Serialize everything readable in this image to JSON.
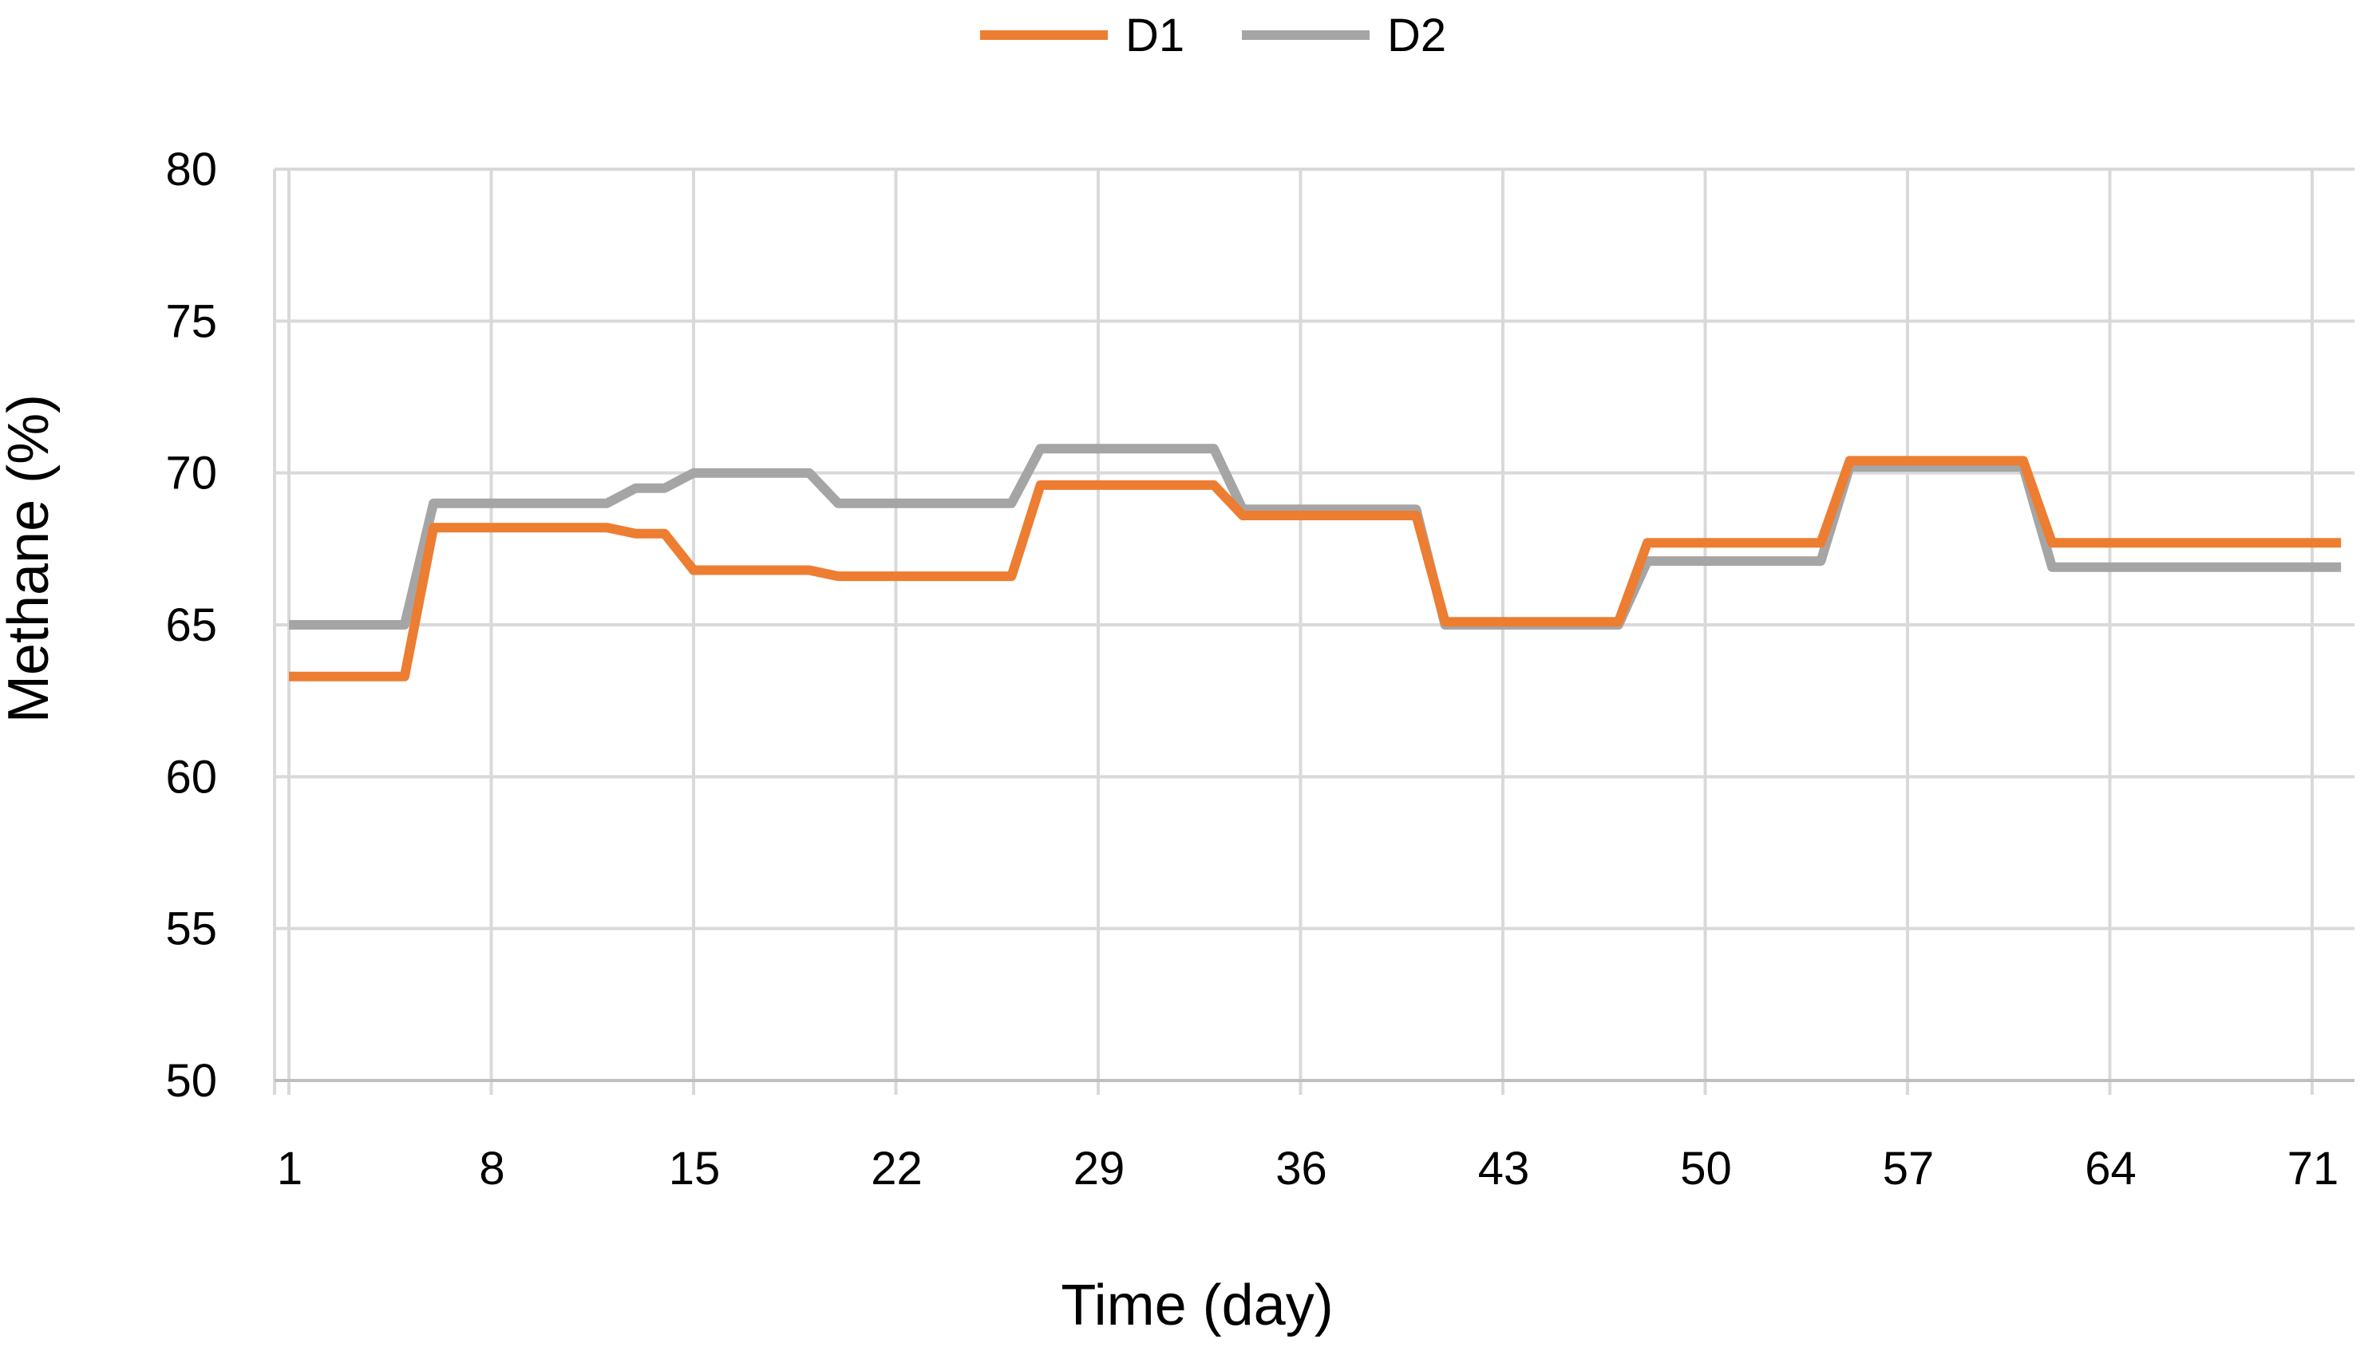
{
  "chart_data": {
    "type": "line",
    "title": "",
    "xlabel": "Time (day)",
    "ylabel": "Methane (%)",
    "xlim": [
      1,
      72
    ],
    "ylim": [
      50,
      80
    ],
    "x_ticks": [
      1,
      8,
      15,
      22,
      29,
      36,
      43,
      50,
      57,
      64,
      71
    ],
    "y_ticks": [
      50,
      55,
      60,
      65,
      70,
      75,
      80
    ],
    "grid": true,
    "legend_position": "top-center",
    "colors": {
      "D1": "#ED7D31",
      "D2": "#A5A5A5"
    },
    "series": [
      {
        "name": "D1",
        "points": [
          [
            1,
            63.3
          ],
          [
            5,
            63.3
          ],
          [
            6,
            68.2
          ],
          [
            12,
            68.2
          ],
          [
            13,
            68.0
          ],
          [
            14,
            68.0
          ],
          [
            15,
            66.8
          ],
          [
            19,
            66.8
          ],
          [
            20,
            66.6
          ],
          [
            26,
            66.6
          ],
          [
            27,
            69.6
          ],
          [
            33,
            69.6
          ],
          [
            34,
            68.6
          ],
          [
            40,
            68.6
          ],
          [
            41,
            65.1
          ],
          [
            47,
            65.1
          ],
          [
            48,
            67.7
          ],
          [
            54,
            67.7
          ],
          [
            55,
            70.4
          ],
          [
            61,
            70.4
          ],
          [
            62,
            67.7
          ],
          [
            72,
            67.7
          ]
        ]
      },
      {
        "name": "D2",
        "points": [
          [
            1,
            65.0
          ],
          [
            5,
            65.0
          ],
          [
            6,
            69.0
          ],
          [
            12,
            69.0
          ],
          [
            13,
            69.5
          ],
          [
            14,
            69.5
          ],
          [
            15,
            70.0
          ],
          [
            19,
            70.0
          ],
          [
            20,
            69.0
          ],
          [
            26,
            69.0
          ],
          [
            27,
            70.8
          ],
          [
            33,
            70.8
          ],
          [
            34,
            68.8
          ],
          [
            40,
            68.8
          ],
          [
            41,
            65.0
          ],
          [
            47,
            65.0
          ],
          [
            48,
            67.1
          ],
          [
            54,
            67.1
          ],
          [
            55,
            70.2
          ],
          [
            61,
            70.2
          ],
          [
            62,
            66.9
          ],
          [
            72,
            66.9
          ]
        ]
      }
    ]
  }
}
